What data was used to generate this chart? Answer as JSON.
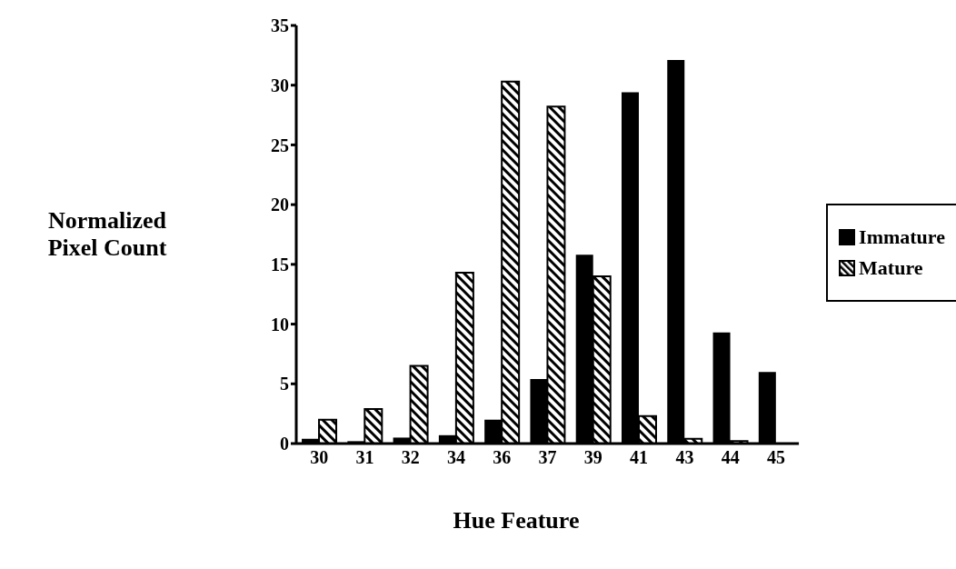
{
  "chart_data": {
    "type": "bar",
    "xlabel": "Hue Feature",
    "ylabel": "Normalized Pixel Count",
    "categories": [
      "30",
      "31",
      "32",
      "34",
      "36",
      "37",
      "39",
      "41",
      "43",
      "44",
      "45"
    ],
    "series": [
      {
        "name": "Immature",
        "color": "#000000",
        "values": [
          0.4,
          0.2,
          0.5,
          0.7,
          2.0,
          5.4,
          15.8,
          29.4,
          32.1,
          9.3,
          6.0
        ]
      },
      {
        "name": "Mature",
        "color": "#000000",
        "values": [
          2.0,
          2.9,
          6.5,
          14.3,
          30.3,
          28.2,
          14.0,
          2.3,
          0.4,
          0.2,
          null
        ]
      }
    ],
    "ylim": [
      0,
      35
    ],
    "yticks": [
      0,
      5,
      10,
      15,
      20,
      25,
      30,
      35
    ],
    "grid": false,
    "legend": "right"
  }
}
